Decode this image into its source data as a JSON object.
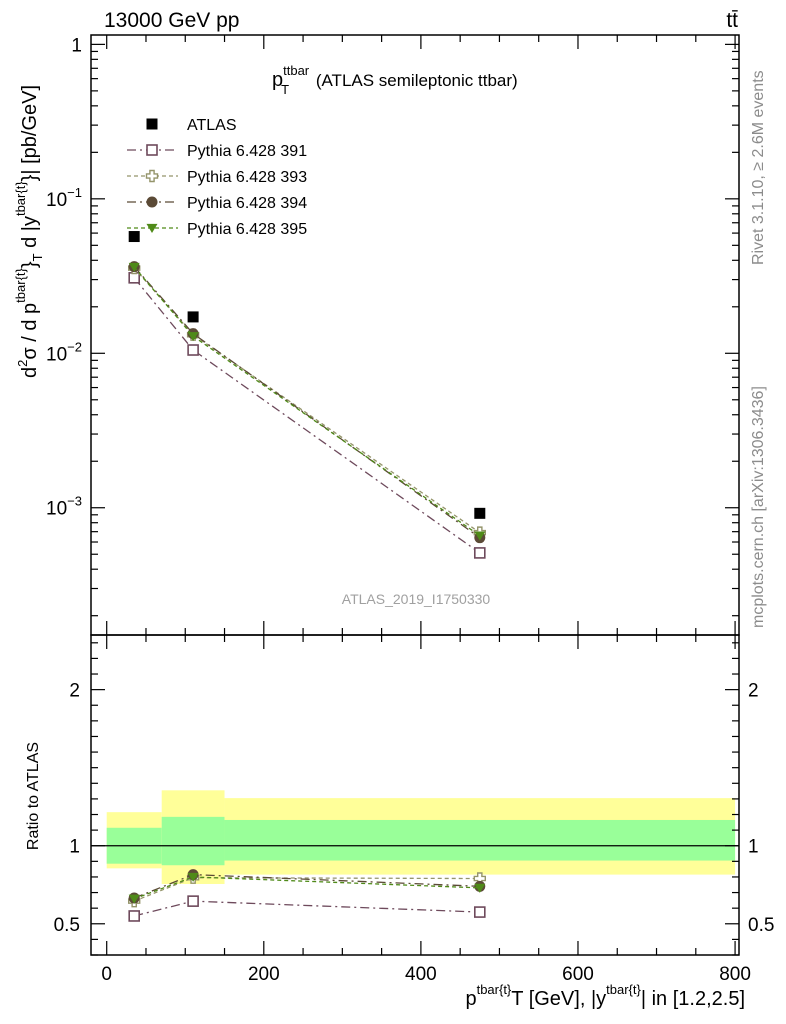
{
  "header": {
    "left": "13000 GeV pp",
    "right": "tt̄"
  },
  "side_labels": {
    "rivet": "Rivet 3.1.10, ≥ 2.6M events",
    "mcplots": "mcplots.cern.ch [arXiv:1306.3436]"
  },
  "chart_data": {
    "type": "scatter",
    "title_main": "p",
    "title_sup": "ttbar",
    "title_sub": "T",
    "title_rest": " (ATLAS semileptonic ttbar)",
    "watermark": "ATLAS_2019_I1750330",
    "x_axis": {
      "label_p": "p",
      "label_sup1": "tbar{t}",
      "label_sub": "T",
      "label_mid": " [GeV], |y",
      "label_sup2": "tbar{t}",
      "label_end": "| in [1.2,2.5]",
      "range": [
        -20,
        805
      ],
      "ticks": [
        "0",
        "200",
        "400",
        "600",
        "800"
      ],
      "tick_values": [
        0,
        200,
        400,
        600,
        800
      ]
    },
    "main_panel": {
      "scale": "log",
      "y_range": [
        0.00015,
        1.15
      ],
      "y_ticks": [
        {
          "value": 1,
          "base": "1",
          "exp": ""
        },
        {
          "value": 0.1,
          "base": "10",
          "exp": "−1"
        },
        {
          "value": 0.01,
          "base": "10",
          "exp": "−2"
        },
        {
          "value": 0.001,
          "base": "10",
          "exp": "−3"
        }
      ],
      "y_label": {
        "a": "d",
        "a_sup": "2",
        "b": "σ / d p",
        "b_sup": "tbar{t}",
        "c": "}",
        "c_sub": "T",
        "d": " d |y",
        "d_sup": "tbar{t}",
        "e": "}| [pb/GeV]"
      }
    },
    "ratio_panel": {
      "y_label": "Ratio to ATLAS",
      "y_range": [
        0.3,
        2.35
      ],
      "y_ticks": [
        "0.5",
        "1",
        "2"
      ],
      "y_tick_values": [
        0.5,
        1,
        2
      ],
      "bands": [
        {
          "x0": 0,
          "x1": 70,
          "inner": [
            0.885,
            1.115
          ],
          "outer": [
            0.855,
            1.215
          ]
        },
        {
          "x0": 70,
          "x1": 150,
          "inner": [
            0.875,
            1.185
          ],
          "outer": [
            0.755,
            1.355
          ]
        },
        {
          "x0": 150,
          "x1": 800,
          "inner": [
            0.905,
            1.165
          ],
          "outer": [
            0.815,
            1.305
          ]
        }
      ]
    },
    "x": [
      35,
      110,
      475
    ],
    "series": [
      {
        "name": "ATLAS",
        "marker": "filled-square",
        "color": "#000000",
        "line": "none",
        "values": [
          0.057,
          0.0172,
          0.00092
        ],
        "ratio": [
          1,
          1,
          1
        ]
      },
      {
        "name": "Pythia 6.428 391",
        "marker": "open-square",
        "color": "#6e4a5c",
        "line": "dashdot",
        "values": [
          0.0308,
          0.0105,
          0.00051
        ],
        "ratio": [
          0.55,
          0.645,
          0.575
        ]
      },
      {
        "name": "Pythia 6.428 393",
        "marker": "open-cross",
        "color": "#94946a",
        "line": "dashed",
        "values": [
          0.0356,
          0.0132,
          0.00069
        ],
        "ratio": [
          0.645,
          0.795,
          0.79
        ]
      },
      {
        "name": "Pythia 6.428 394",
        "marker": "filled-circle",
        "color": "#5b4a36",
        "line": "dashdot",
        "values": [
          0.0364,
          0.0134,
          0.00064
        ],
        "ratio": [
          0.665,
          0.815,
          0.74
        ]
      },
      {
        "name": "Pythia 6.428 395",
        "marker": "filled-triangle-down",
        "color": "#4f8a18",
        "line": "dashed",
        "values": [
          0.0362,
          0.0129,
          0.00066
        ],
        "ratio": [
          0.66,
          0.8,
          0.73
        ]
      }
    ]
  }
}
